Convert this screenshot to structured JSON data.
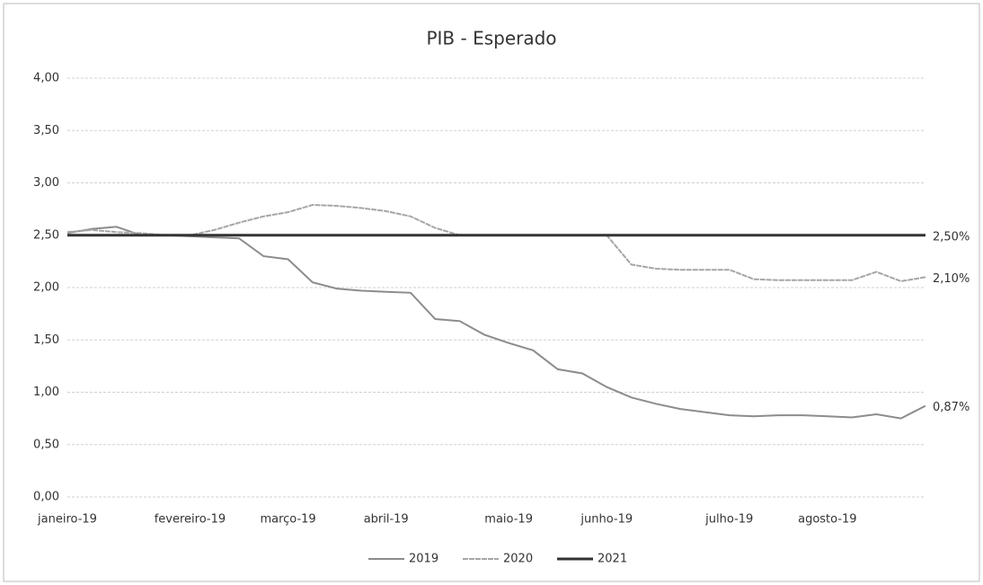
{
  "chart_data": {
    "type": "line",
    "title": "PIB - Esperado",
    "categories": [
      "janeiro-19",
      null,
      null,
      null,
      null,
      "fevereiro-19",
      null,
      null,
      null,
      "março-19",
      null,
      null,
      null,
      "abril-19",
      null,
      null,
      null,
      null,
      "maio-19",
      null,
      null,
      null,
      "junho-19",
      null,
      null,
      null,
      null,
      "julho-19",
      null,
      null,
      null,
      "agosto-19",
      null,
      null,
      null,
      null
    ],
    "series": [
      {
        "name": "2019",
        "color": "#8c8c8c",
        "values": [
          2.52,
          2.56,
          2.58,
          2.5,
          2.5,
          2.49,
          2.48,
          2.47,
          2.3,
          2.27,
          2.05,
          1.99,
          1.97,
          1.96,
          1.95,
          1.7,
          1.68,
          1.55,
          1.47,
          1.4,
          1.22,
          1.18,
          1.05,
          0.95,
          0.89,
          0.84,
          0.81,
          0.78,
          0.77,
          0.78,
          0.78,
          0.77,
          0.76,
          0.79,
          0.75,
          0.87
        ],
        "value_labels": [
          null,
          null,
          null,
          null,
          null,
          null,
          null,
          null,
          null,
          null,
          null,
          null,
          null,
          null,
          null,
          null,
          null,
          null,
          null,
          null,
          null,
          null,
          null,
          null,
          null,
          null,
          null,
          null,
          null,
          null,
          null,
          null,
          null,
          null,
          null,
          "0,87%"
        ]
      },
      {
        "name": "2020",
        "color": "#a6a6a6",
        "values": [
          2.53,
          2.55,
          2.53,
          2.52,
          2.5,
          2.5,
          2.55,
          2.62,
          2.68,
          2.72,
          2.79,
          2.78,
          2.76,
          2.73,
          2.68,
          2.57,
          2.5,
          2.5,
          2.5,
          2.5,
          2.5,
          2.5,
          2.5,
          2.22,
          2.18,
          2.17,
          2.17,
          2.17,
          2.08,
          2.07,
          2.07,
          2.07,
          2.07,
          2.15,
          2.06,
          2.1
        ],
        "value_labels": [
          null,
          null,
          null,
          null,
          null,
          null,
          null,
          null,
          null,
          null,
          null,
          null,
          null,
          null,
          null,
          null,
          null,
          null,
          null,
          null,
          null,
          null,
          null,
          null,
          null,
          null,
          null,
          null,
          null,
          null,
          null,
          null,
          null,
          null,
          null,
          "2,10%"
        ]
      },
      {
        "name": "2021",
        "color": "#333333",
        "values": [
          2.5,
          2.5,
          2.5,
          2.5,
          2.5,
          2.5,
          2.5,
          2.5,
          2.5,
          2.5,
          2.5,
          2.5,
          2.5,
          2.5,
          2.5,
          2.5,
          2.5,
          2.5,
          2.5,
          2.5,
          2.5,
          2.5,
          2.5,
          2.5,
          2.5,
          2.5,
          2.5,
          2.5,
          2.5,
          2.5,
          2.5,
          2.5,
          2.5,
          2.5,
          2.5,
          2.5
        ],
        "value_labels": [
          null,
          null,
          null,
          null,
          null,
          null,
          null,
          null,
          null,
          null,
          null,
          null,
          null,
          null,
          null,
          null,
          null,
          null,
          null,
          null,
          null,
          null,
          null,
          null,
          null,
          null,
          null,
          null,
          null,
          null,
          null,
          null,
          null,
          null,
          null,
          "2,50%"
        ]
      }
    ],
    "ylim": [
      0,
      4
    ],
    "yticks": [
      {
        "value": 0,
        "label": "0,00"
      },
      {
        "value": 0.5,
        "label": "0,50"
      },
      {
        "value": 1,
        "label": "1,00"
      },
      {
        "value": 1.5,
        "label": "1,50"
      },
      {
        "value": 2,
        "label": "2,00"
      },
      {
        "value": 2.5,
        "label": "2,50"
      },
      {
        "value": 3,
        "label": "3,00"
      },
      {
        "value": 3.5,
        "label": "3,50"
      },
      {
        "value": 4,
        "label": "4,00"
      }
    ],
    "grid": true,
    "legend": "bottom"
  }
}
